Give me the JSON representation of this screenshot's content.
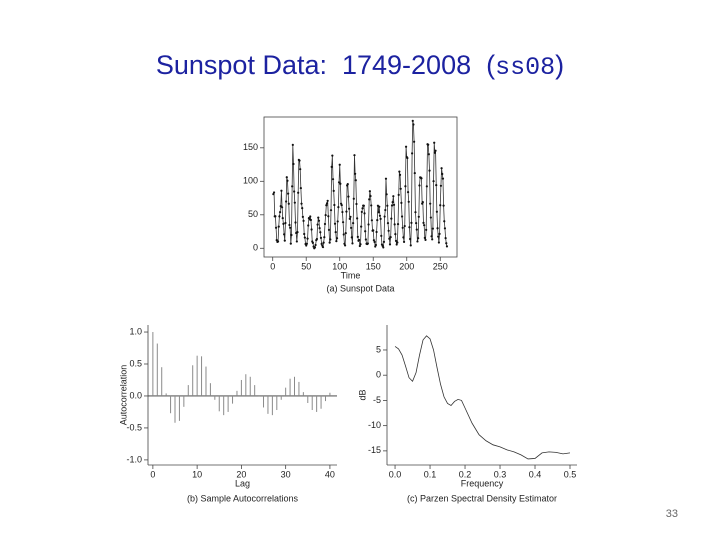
{
  "slide": {
    "title_parts": [
      "Sunspot Data:  1749-2008  (",
      "ss08",
      ")"
    ],
    "page_number": "33"
  },
  "chart_data": [
    {
      "type": "line",
      "markers": true,
      "frame": true,
      "color": "#333333",
      "caption": "(a) Sunspot Data",
      "x_label": "Time",
      "xlim": [
        -13,
        275
      ],
      "ylim": [
        -13,
        196
      ],
      "xticks": [
        0,
        50,
        100,
        150,
        200,
        250
      ],
      "yticks": [
        0,
        50,
        100,
        150
      ],
      "x": [
        1,
        2,
        3,
        4,
        5,
        6,
        7,
        8,
        9,
        10,
        11,
        12,
        13,
        14,
        15,
        16,
        17,
        18,
        19,
        20,
        21,
        22,
        23,
        24,
        25,
        26,
        27,
        28,
        29,
        30,
        31,
        32,
        33,
        34,
        35,
        36,
        37,
        38,
        39,
        40,
        41,
        42,
        43,
        44,
        45,
        46,
        47,
        48,
        49,
        50,
        51,
        52,
        53,
        54,
        55,
        56,
        57,
        58,
        59,
        60,
        61,
        62,
        63,
        64,
        65,
        66,
        67,
        68,
        69,
        70,
        71,
        72,
        73,
        74,
        75,
        76,
        77,
        78,
        79,
        80,
        81,
        82,
        83,
        84,
        85,
        86,
        87,
        88,
        89,
        90,
        91,
        92,
        93,
        94,
        95,
        96,
        97,
        98,
        99,
        100,
        101,
        102,
        103,
        104,
        105,
        106,
        107,
        108,
        109,
        110,
        111,
        112,
        113,
        114,
        115,
        116,
        117,
        118,
        119,
        120,
        121,
        122,
        123,
        124,
        125,
        126,
        127,
        128,
        129,
        130,
        131,
        132,
        133,
        134,
        135,
        136,
        137,
        138,
        139,
        140,
        141,
        142,
        143,
        144,
        145,
        146,
        147,
        148,
        149,
        150,
        151,
        152,
        153,
        154,
        155,
        156,
        157,
        158,
        159,
        160,
        161,
        162,
        163,
        164,
        165,
        166,
        167,
        168,
        169,
        170,
        171,
        172,
        173,
        174,
        175,
        176,
        177,
        178,
        179,
        180,
        181,
        182,
        183,
        184,
        185,
        186,
        187,
        188,
        189,
        190,
        191,
        192,
        193,
        194,
        195,
        196,
        197,
        198,
        199,
        200,
        201,
        202,
        203,
        204,
        205,
        206,
        207,
        208,
        209,
        210,
        211,
        212,
        213,
        214,
        215,
        216,
        217,
        218,
        219,
        220,
        221,
        222,
        223,
        224,
        225,
        226,
        227,
        228,
        229,
        230,
        231,
        232,
        233,
        234,
        235,
        236,
        237,
        238,
        239,
        240,
        241,
        242,
        243,
        244,
        245,
        246,
        247,
        248,
        249,
        250,
        251,
        252,
        253,
        254,
        255,
        256,
        257,
        258,
        259,
        260
      ],
      "values": [
        80.9,
        83.4,
        47.7,
        47.8,
        30.7,
        12.2,
        9.6,
        10.2,
        32.4,
        47.6,
        54.0,
        62.9,
        85.9,
        61.2,
        45.1,
        36.4,
        20.9,
        11.4,
        37.8,
        69.8,
        106.1,
        100.8,
        81.6,
        66.5,
        34.8,
        30.6,
        7.0,
        19.8,
        92.5,
        154.4,
        125.9,
        84.8,
        68.1,
        38.5,
        22.8,
        10.2,
        24.1,
        82.9,
        132.0,
        130.9,
        118.1,
        89.9,
        66.6,
        60.0,
        46.9,
        41.0,
        21.3,
        16.0,
        6.4,
        4.1,
        6.8,
        14.5,
        34.0,
        45.0,
        43.1,
        47.5,
        42.2,
        28.1,
        10.1,
        8.1,
        2.5,
        0.0,
        1.4,
        5.0,
        12.2,
        13.9,
        35.4,
        45.8,
        41.1,
        30.1,
        23.9,
        15.6,
        6.6,
        4.0,
        1.8,
        8.5,
        16.6,
        36.3,
        49.6,
        64.2,
        67.0,
        70.9,
        47.8,
        27.5,
        8.5,
        13.2,
        56.9,
        121.5,
        138.3,
        103.2,
        85.7,
        64.6,
        36.7,
        24.2,
        10.7,
        15.0,
        40.1,
        61.5,
        98.5,
        124.7,
        96.3,
        66.6,
        64.5,
        54.1,
        39.0,
        20.6,
        6.7,
        4.3,
        22.7,
        54.8,
        93.8,
        95.8,
        77.2,
        59.1,
        44.0,
        47.0,
        30.5,
        16.3,
        7.3,
        37.6,
        74.0,
        139.0,
        111.2,
        101.6,
        66.2,
        44.7,
        17.0,
        11.3,
        12.4,
        3.4,
        6.0,
        32.3,
        54.3,
        59.7,
        63.7,
        63.5,
        52.2,
        25.4,
        13.1,
        6.8,
        6.3,
        7.1,
        35.6,
        73.0,
        85.1,
        78.0,
        64.0,
        41.8,
        26.2,
        26.7,
        12.1,
        9.5,
        2.7,
        5.0,
        24.4,
        42.0,
        63.5,
        53.8,
        62.0,
        48.5,
        43.9,
        18.6,
        5.7,
        3.6,
        1.4,
        9.6,
        47.4,
        57.1,
        103.9,
        80.6,
        63.6,
        37.6,
        26.1,
        14.2,
        5.8,
        16.7,
        44.3,
        63.9,
        69.0,
        77.8,
        64.9,
        35.7,
        21.2,
        11.1,
        5.7,
        8.7,
        36.1,
        79.7,
        114.4,
        109.6,
        88.8,
        67.8,
        47.5,
        30.6,
        16.3,
        9.6,
        33.2,
        92.6,
        151.6,
        136.3,
        134.7,
        83.9,
        69.4,
        31.5,
        13.9,
        4.4,
        38.0,
        141.7,
        190.2,
        184.8,
        159.0,
        112.3,
        53.9,
        37.6,
        27.9,
        10.2,
        15.1,
        47.0,
        93.8,
        105.9,
        105.5,
        104.5,
        66.6,
        68.9,
        38.0,
        34.5,
        15.5,
        12.6,
        27.5,
        92.5,
        155.4,
        154.6,
        140.4,
        115.9,
        66.6,
        45.9,
        17.9,
        13.4,
        29.4,
        100.2,
        157.6,
        142.6,
        145.7,
        94.3,
        54.6,
        29.9,
        17.5,
        8.6,
        21.5,
        64.3,
        93.3,
        119.6,
        111.0,
        104.0,
        63.7,
        40.4,
        29.8,
        15.2,
        7.5,
        2.9
      ]
    },
    {
      "type": "stem",
      "frame": false,
      "color": "#8a8a8a",
      "caption": "(b) Sample Autocorrelations",
      "x_label": "Lag",
      "y_label": "Autocorrelation",
      "xlim": [
        -1.1,
        41.6
      ],
      "ylim": [
        -1.08,
        1.11
      ],
      "xticks": [
        0,
        10,
        20,
        30,
        40
      ],
      "yticks": [
        {
          "value": -1,
          "label": "-1.0"
        },
        {
          "value": -0.5,
          "label": "-0.5"
        },
        {
          "value": 0,
          "label": "0.0"
        },
        0.5,
        {
          "value": 1,
          "label": "1.0"
        }
      ],
      "x": [
        0,
        1,
        2,
        3,
        4,
        5,
        6,
        7,
        8,
        9,
        10,
        11,
        12,
        13,
        14,
        15,
        16,
        17,
        18,
        19,
        20,
        21,
        22,
        23,
        24,
        25,
        26,
        27,
        28,
        29,
        30,
        31,
        32,
        33,
        34,
        35,
        36,
        37,
        38,
        39,
        40
      ],
      "values": [
        1.0,
        0.82,
        0.45,
        0.04,
        -0.27,
        -0.42,
        -0.39,
        -0.17,
        0.17,
        0.48,
        0.63,
        0.62,
        0.46,
        0.2,
        -0.06,
        -0.24,
        -0.3,
        -0.25,
        -0.12,
        0.08,
        0.25,
        0.34,
        0.3,
        0.17,
        -0.01,
        -0.18,
        -0.28,
        -0.3,
        -0.22,
        -0.06,
        0.13,
        0.27,
        0.3,
        0.22,
        0.06,
        -0.11,
        -0.22,
        -0.25,
        -0.2,
        -0.08,
        0.05
      ]
    },
    {
      "type": "line",
      "markers": false,
      "frame": false,
      "color": "#333333",
      "caption": "(c) Parzen Spectral Density Estimator",
      "x_label": "Frequency",
      "y_label": "dB",
      "xlim": [
        -0.023,
        0.52
      ],
      "ylim": [
        -17.8,
        9.95
      ],
      "xticks": [
        {
          "value": 0,
          "label": "0.0"
        },
        0.1,
        0.2,
        0.3,
        0.4,
        0.5
      ],
      "yticks": [
        5,
        0,
        -5,
        -10,
        -15
      ],
      "x": [
        0,
        0.01,
        0.02,
        0.03,
        0.04,
        0.05,
        0.06,
        0.07,
        0.08,
        0.09,
        0.1,
        0.11,
        0.12,
        0.13,
        0.14,
        0.15,
        0.16,
        0.17,
        0.18,
        0.19,
        0.2,
        0.22,
        0.24,
        0.26,
        0.28,
        0.3,
        0.32,
        0.34,
        0.36,
        0.38,
        0.4,
        0.42,
        0.44,
        0.46,
        0.48,
        0.5
      ],
      "values": [
        5.7,
        5.2,
        4.0,
        1.8,
        -0.5,
        -1.2,
        0.5,
        4.0,
        7.0,
        7.8,
        7.2,
        5.0,
        1.5,
        -1.8,
        -4.3,
        -5.6,
        -6.0,
        -5.2,
        -4.8,
        -5.0,
        -6.5,
        -9.5,
        -11.8,
        -13.0,
        -13.8,
        -14.2,
        -14.8,
        -15.2,
        -15.8,
        -16.6,
        -16.5,
        -15.4,
        -15.2,
        -15.3,
        -15.6,
        -15.4
      ]
    }
  ]
}
